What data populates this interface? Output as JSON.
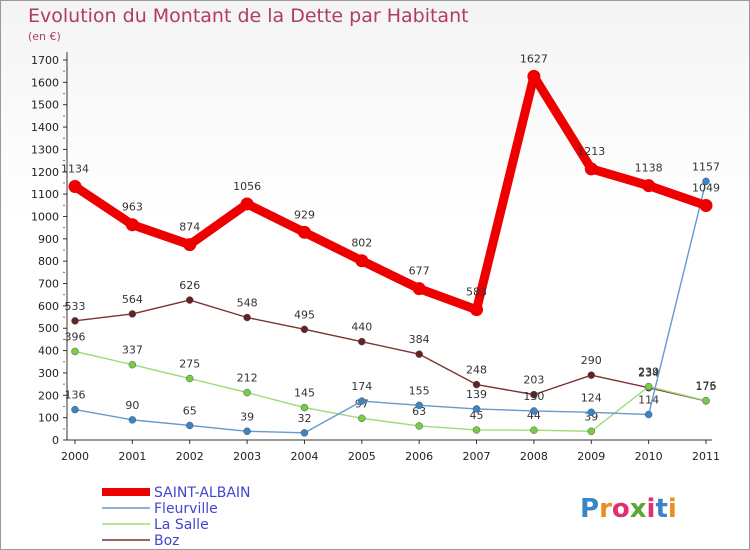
{
  "chart_data": {
    "type": "line",
    "title": "Evolution du Montant de la Dette par Habitant",
    "subtitle": "(en €)",
    "categories": [
      "2000",
      "2001",
      "2002",
      "2003",
      "2004",
      "2005",
      "2006",
      "2007",
      "2008",
      "2009",
      "2010",
      "2011"
    ],
    "y_ticks": [
      "0",
      "100",
      "200",
      "300",
      "400",
      "500",
      "600",
      "700",
      "800",
      "900",
      "1000",
      "1100",
      "1200",
      "1300",
      "1400",
      "1500",
      "1600",
      "1700"
    ],
    "ylim": [
      0,
      1700
    ],
    "grid": false,
    "legend_position": "bottom-left",
    "series": [
      {
        "name": "SAINT-ALBAIN",
        "color": "#ee0000",
        "values": [
          1134,
          963,
          874,
          1056,
          929,
          802,
          677,
          583,
          1627,
          1213,
          1138,
          1049
        ],
        "labels": [
          "1134",
          "963",
          "874",
          "1056",
          "929",
          "802",
          "677",
          "583",
          "1627",
          "1213",
          "1138",
          "1049"
        ]
      },
      {
        "name": "Fleurville",
        "color": "#6699cc",
        "marker": "#3a85c8",
        "values": [
          136,
          90,
          65,
          39,
          32,
          174,
          155,
          139,
          130,
          124,
          114,
          1157
        ],
        "labels": [
          "136",
          "90",
          "65",
          "39",
          "32",
          "174",
          "155",
          "139",
          "130",
          "124",
          "114",
          "1157"
        ]
      },
      {
        "name": "La Salle",
        "color": "#99dd77",
        "marker": "#77cc44",
        "values": [
          396,
          337,
          275,
          212,
          145,
          97,
          63,
          45,
          44,
          39,
          239,
          176
        ],
        "labels": [
          "396",
          "337",
          "275",
          "212",
          "145",
          "97",
          "63",
          "45",
          "44",
          "39",
          "239",
          "176"
        ]
      },
      {
        "name": "Boz",
        "color": "#7a3333",
        "marker": "#662222",
        "values": [
          533,
          564,
          626,
          548,
          495,
          440,
          384,
          248,
          203,
          290,
          234,
          175
        ],
        "labels": [
          "533",
          "564",
          "626",
          "548",
          "495",
          "440",
          "384",
          "248",
          "203",
          "290",
          "234",
          "175"
        ]
      }
    ]
  },
  "brand": {
    "text": "Proxiti"
  }
}
